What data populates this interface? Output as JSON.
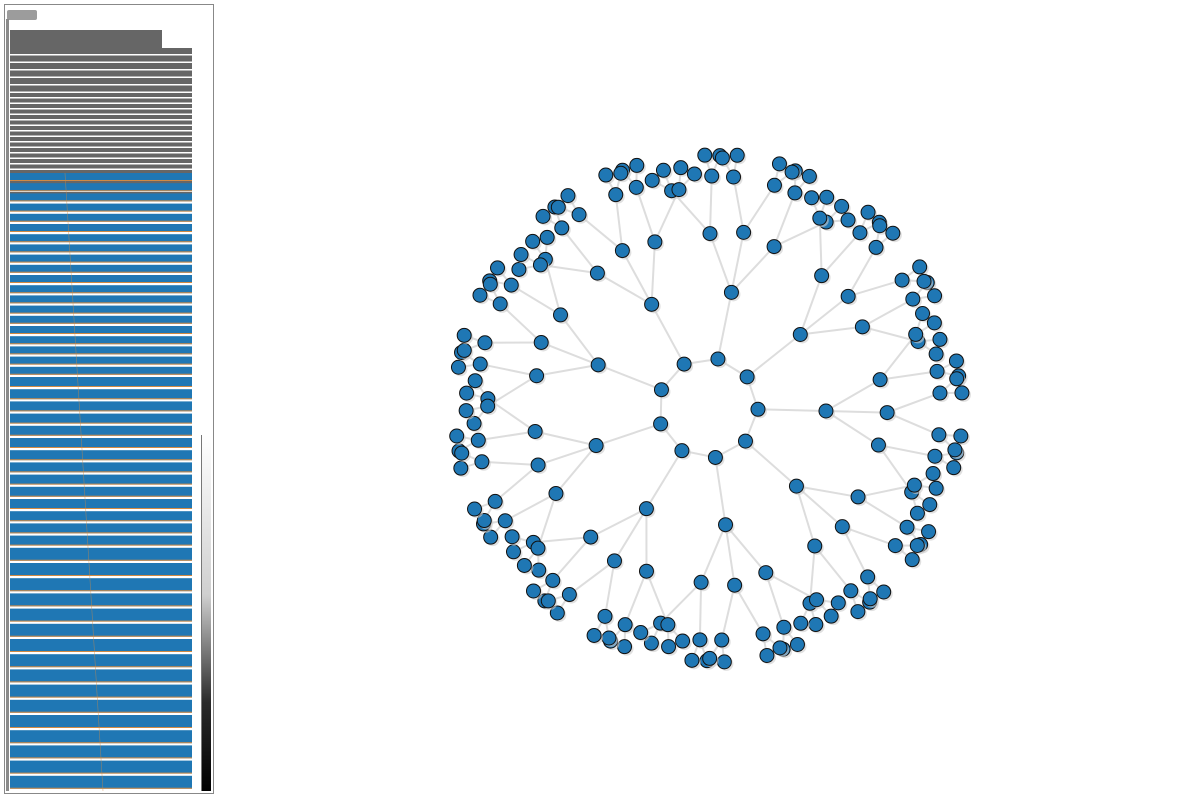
{
  "sidebar": {
    "gray_color": "#666666",
    "blue_color": "#1f77b4",
    "accent_color": "#d08a43",
    "gray_row_count": 26,
    "blue_row_count": 52
  },
  "graph": {
    "node_fill": "#1f77b4",
    "node_stroke": "#111111",
    "edge_color": "#dddddd",
    "center_radius_rings": [
      0,
      1,
      2,
      3
    ],
    "branch_count": 9
  }
}
